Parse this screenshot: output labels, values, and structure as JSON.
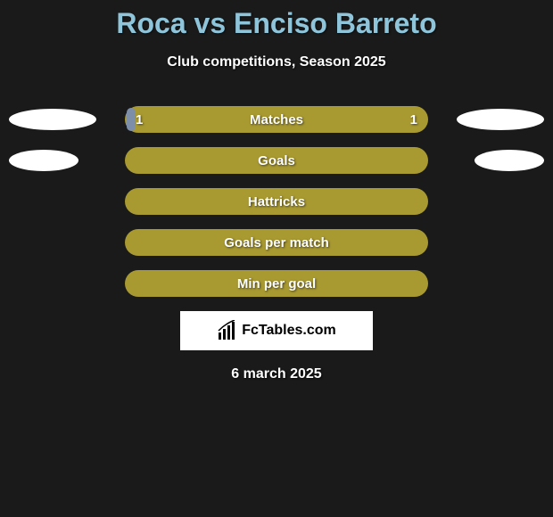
{
  "title": "Roca vs Enciso Barreto",
  "subtitle": "Club competitions, Season 2025",
  "date": "6 march 2025",
  "logo_text": "FcTables.com",
  "colors": {
    "background": "#1a1a1a",
    "title": "#8fc5db",
    "text": "#ffffff",
    "bar": "#a89931",
    "bar_fill": "#7d8fa8",
    "ellipse": "#ffffff",
    "logo_bg": "#ffffff",
    "logo_text": "#000000"
  },
  "stats": [
    {
      "label": "Matches",
      "left_value": "1",
      "right_value": "1",
      "fill_percent": 3,
      "left_ellipse_width": 98,
      "right_ellipse_width": 98
    },
    {
      "label": "Goals",
      "left_value": "",
      "right_value": "",
      "fill_percent": 0,
      "left_ellipse_width": 78,
      "right_ellipse_width": 78
    },
    {
      "label": "Hattricks",
      "left_value": "",
      "right_value": "",
      "fill_percent": 0,
      "left_ellipse_width": 0,
      "right_ellipse_width": 0
    },
    {
      "label": "Goals per match",
      "left_value": "",
      "right_value": "",
      "fill_percent": 0,
      "left_ellipse_width": 0,
      "right_ellipse_width": 0
    },
    {
      "label": "Min per goal",
      "left_value": "",
      "right_value": "",
      "fill_percent": 0,
      "left_ellipse_width": 0,
      "right_ellipse_width": 0
    }
  ]
}
